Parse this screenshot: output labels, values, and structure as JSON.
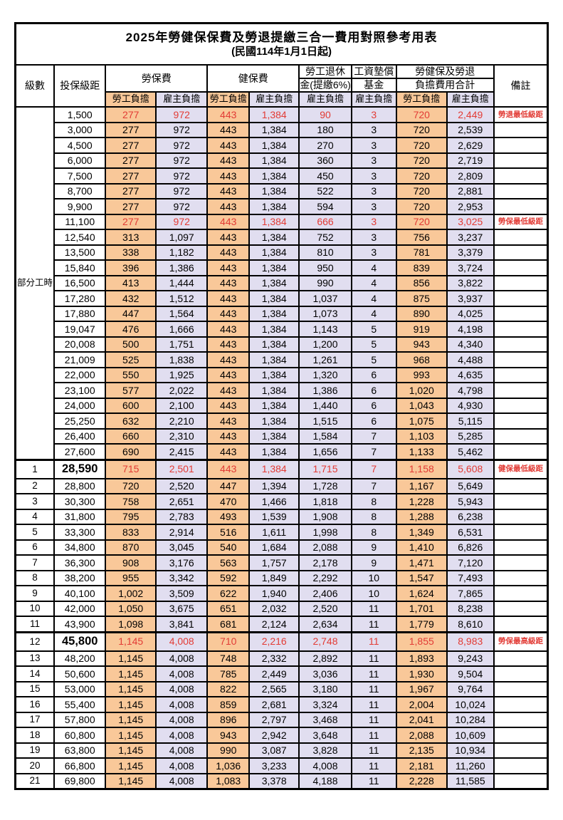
{
  "colors": {
    "employee_fill": "#F9C899",
    "employer_fill": "#E1DEF0",
    "highlight_red": "#E23B35",
    "border": "#000000"
  },
  "table": {
    "title": "2025年勞健保保費及勞退提繳三合一費用對照參考用表",
    "subtitle": "(民國114年1月1日起)",
    "headers": {
      "level": "級數",
      "bracket": "投保級距",
      "labor_insurance": "勞保費",
      "health_insurance": "健保費",
      "pension_line1": "勞工退休",
      "pension_line2": "金(提繳6%)",
      "wage_fund_line1": "工資墊償",
      "wage_fund_line2": "基金",
      "total_line1": "勞健保及勞退",
      "total_line2": "負擔費用合計",
      "note": "備註",
      "employee": "勞工負擔",
      "employer": "雇主負擔"
    },
    "part_time_label": "部分工時",
    "part_time_rowspan": 23,
    "rows": [
      {
        "level": null,
        "bracket": "1,500",
        "values": [
          "277",
          "972",
          "443",
          "1,384",
          "90",
          "3",
          "720",
          "2,449"
        ],
        "note": "勞退最低級距",
        "red": true,
        "big": false
      },
      {
        "level": null,
        "bracket": "3,000",
        "values": [
          "277",
          "972",
          "443",
          "1,384",
          "180",
          "3",
          "720",
          "2,539"
        ],
        "note": "",
        "red": false,
        "big": false
      },
      {
        "level": null,
        "bracket": "4,500",
        "values": [
          "277",
          "972",
          "443",
          "1,384",
          "270",
          "3",
          "720",
          "2,629"
        ],
        "note": "",
        "red": false,
        "big": false
      },
      {
        "level": null,
        "bracket": "6,000",
        "values": [
          "277",
          "972",
          "443",
          "1,384",
          "360",
          "3",
          "720",
          "2,719"
        ],
        "note": "",
        "red": false,
        "big": false
      },
      {
        "level": null,
        "bracket": "7,500",
        "values": [
          "277",
          "972",
          "443",
          "1,384",
          "450",
          "3",
          "720",
          "2,809"
        ],
        "note": "",
        "red": false,
        "big": false
      },
      {
        "level": null,
        "bracket": "8,700",
        "values": [
          "277",
          "972",
          "443",
          "1,384",
          "522",
          "3",
          "720",
          "2,881"
        ],
        "note": "",
        "red": false,
        "big": false
      },
      {
        "level": null,
        "bracket": "9,900",
        "values": [
          "277",
          "972",
          "443",
          "1,384",
          "594",
          "3",
          "720",
          "2,953"
        ],
        "note": "",
        "red": false,
        "big": false
      },
      {
        "level": null,
        "bracket": "11,100",
        "values": [
          "277",
          "972",
          "443",
          "1,384",
          "666",
          "3",
          "720",
          "3,025"
        ],
        "note": "勞保最低級距",
        "red": true,
        "big": false
      },
      {
        "level": null,
        "bracket": "12,540",
        "values": [
          "313",
          "1,097",
          "443",
          "1,384",
          "752",
          "3",
          "756",
          "3,237"
        ],
        "note": "",
        "red": false,
        "big": false
      },
      {
        "level": null,
        "bracket": "13,500",
        "values": [
          "338",
          "1,182",
          "443",
          "1,384",
          "810",
          "3",
          "781",
          "3,379"
        ],
        "note": "",
        "red": false,
        "big": false
      },
      {
        "level": null,
        "bracket": "15,840",
        "values": [
          "396",
          "1,386",
          "443",
          "1,384",
          "950",
          "4",
          "839",
          "3,724"
        ],
        "note": "",
        "red": false,
        "big": false
      },
      {
        "level": null,
        "bracket": "16,500",
        "values": [
          "413",
          "1,444",
          "443",
          "1,384",
          "990",
          "4",
          "856",
          "3,822"
        ],
        "note": "",
        "red": false,
        "big": false
      },
      {
        "level": null,
        "bracket": "17,280",
        "values": [
          "432",
          "1,512",
          "443",
          "1,384",
          "1,037",
          "4",
          "875",
          "3,937"
        ],
        "note": "",
        "red": false,
        "big": false
      },
      {
        "level": null,
        "bracket": "17,880",
        "values": [
          "447",
          "1,564",
          "443",
          "1,384",
          "1,073",
          "4",
          "890",
          "4,025"
        ],
        "note": "",
        "red": false,
        "big": false
      },
      {
        "level": null,
        "bracket": "19,047",
        "values": [
          "476",
          "1,666",
          "443",
          "1,384",
          "1,143",
          "5",
          "919",
          "4,198"
        ],
        "note": "",
        "red": false,
        "big": false
      },
      {
        "level": null,
        "bracket": "20,008",
        "values": [
          "500",
          "1,751",
          "443",
          "1,384",
          "1,200",
          "5",
          "943",
          "4,340"
        ],
        "note": "",
        "red": false,
        "big": false
      },
      {
        "level": null,
        "bracket": "21,009",
        "values": [
          "525",
          "1,838",
          "443",
          "1,384",
          "1,261",
          "5",
          "968",
          "4,488"
        ],
        "note": "",
        "red": false,
        "big": false
      },
      {
        "level": null,
        "bracket": "22,000",
        "values": [
          "550",
          "1,925",
          "443",
          "1,384",
          "1,320",
          "6",
          "993",
          "4,635"
        ],
        "note": "",
        "red": false,
        "big": false
      },
      {
        "level": null,
        "bracket": "23,100",
        "values": [
          "577",
          "2,022",
          "443",
          "1,384",
          "1,386",
          "6",
          "1,020",
          "4,798"
        ],
        "note": "",
        "red": false,
        "big": false
      },
      {
        "level": null,
        "bracket": "24,000",
        "values": [
          "600",
          "2,100",
          "443",
          "1,384",
          "1,440",
          "6",
          "1,043",
          "4,930"
        ],
        "note": "",
        "red": false,
        "big": false
      },
      {
        "level": null,
        "bracket": "25,250",
        "values": [
          "632",
          "2,210",
          "443",
          "1,384",
          "1,515",
          "6",
          "1,075",
          "5,115"
        ],
        "note": "",
        "red": false,
        "big": false
      },
      {
        "level": null,
        "bracket": "26,400",
        "values": [
          "660",
          "2,310",
          "443",
          "1,384",
          "1,584",
          "7",
          "1,103",
          "5,285"
        ],
        "note": "",
        "red": false,
        "big": false
      },
      {
        "level": null,
        "bracket": "27,600",
        "values": [
          "690",
          "2,415",
          "443",
          "1,384",
          "1,656",
          "7",
          "1,133",
          "5,462"
        ],
        "note": "",
        "red": false,
        "big": false
      },
      {
        "level": "1",
        "bracket": "28,590",
        "values": [
          "715",
          "2,501",
          "443",
          "1,384",
          "1,715",
          "7",
          "1,158",
          "5,608"
        ],
        "note": "健保最低級距",
        "red": true,
        "big": true
      },
      {
        "level": "2",
        "bracket": "28,800",
        "values": [
          "720",
          "2,520",
          "447",
          "1,394",
          "1,728",
          "7",
          "1,167",
          "5,649"
        ],
        "note": "",
        "red": false,
        "big": false
      },
      {
        "level": "3",
        "bracket": "30,300",
        "values": [
          "758",
          "2,651",
          "470",
          "1,466",
          "1,818",
          "8",
          "1,228",
          "5,943"
        ],
        "note": "",
        "red": false,
        "big": false
      },
      {
        "level": "4",
        "bracket": "31,800",
        "values": [
          "795",
          "2,783",
          "493",
          "1,539",
          "1,908",
          "8",
          "1,288",
          "6,238"
        ],
        "note": "",
        "red": false,
        "big": false
      },
      {
        "level": "5",
        "bracket": "33,300",
        "values": [
          "833",
          "2,914",
          "516",
          "1,611",
          "1,998",
          "8",
          "1,349",
          "6,531"
        ],
        "note": "",
        "red": false,
        "big": false
      },
      {
        "level": "6",
        "bracket": "34,800",
        "values": [
          "870",
          "3,045",
          "540",
          "1,684",
          "2,088",
          "9",
          "1,410",
          "6,826"
        ],
        "note": "",
        "red": false,
        "big": false
      },
      {
        "level": "7",
        "bracket": "36,300",
        "values": [
          "908",
          "3,176",
          "563",
          "1,757",
          "2,178",
          "9",
          "1,471",
          "7,120"
        ],
        "note": "",
        "red": false,
        "big": false
      },
      {
        "level": "8",
        "bracket": "38,200",
        "values": [
          "955",
          "3,342",
          "592",
          "1,849",
          "2,292",
          "10",
          "1,547",
          "7,493"
        ],
        "note": "",
        "red": false,
        "big": false
      },
      {
        "level": "9",
        "bracket": "40,100",
        "values": [
          "1,002",
          "3,509",
          "622",
          "1,940",
          "2,406",
          "10",
          "1,624",
          "7,865"
        ],
        "note": "",
        "red": false,
        "big": false
      },
      {
        "level": "10",
        "bracket": "42,000",
        "values": [
          "1,050",
          "3,675",
          "651",
          "2,032",
          "2,520",
          "11",
          "1,701",
          "8,238"
        ],
        "note": "",
        "red": false,
        "big": false
      },
      {
        "level": "11",
        "bracket": "43,900",
        "values": [
          "1,098",
          "3,841",
          "681",
          "2,124",
          "2,634",
          "11",
          "1,779",
          "8,610"
        ],
        "note": "",
        "red": false,
        "big": false
      },
      {
        "level": "12",
        "bracket": "45,800",
        "values": [
          "1,145",
          "4,008",
          "710",
          "2,216",
          "2,748",
          "11",
          "1,855",
          "8,983"
        ],
        "note": "勞保最高級距",
        "red": true,
        "big": true
      },
      {
        "level": "13",
        "bracket": "48,200",
        "values": [
          "1,145",
          "4,008",
          "748",
          "2,332",
          "2,892",
          "11",
          "1,893",
          "9,243"
        ],
        "note": "",
        "red": false,
        "big": false
      },
      {
        "level": "14",
        "bracket": "50,600",
        "values": [
          "1,145",
          "4,008",
          "785",
          "2,449",
          "3,036",
          "11",
          "1,930",
          "9,504"
        ],
        "note": "",
        "red": false,
        "big": false
      },
      {
        "level": "15",
        "bracket": "53,000",
        "values": [
          "1,145",
          "4,008",
          "822",
          "2,565",
          "3,180",
          "11",
          "1,967",
          "9,764"
        ],
        "note": "",
        "red": false,
        "big": false
      },
      {
        "level": "16",
        "bracket": "55,400",
        "values": [
          "1,145",
          "4,008",
          "859",
          "2,681",
          "3,324",
          "11",
          "2,004",
          "10,024"
        ],
        "note": "",
        "red": false,
        "big": false
      },
      {
        "level": "17",
        "bracket": "57,800",
        "values": [
          "1,145",
          "4,008",
          "896",
          "2,797",
          "3,468",
          "11",
          "2,041",
          "10,284"
        ],
        "note": "",
        "red": false,
        "big": false
      },
      {
        "level": "18",
        "bracket": "60,800",
        "values": [
          "1,145",
          "4,008",
          "943",
          "2,942",
          "3,648",
          "11",
          "2,088",
          "10,609"
        ],
        "note": "",
        "red": false,
        "big": false
      },
      {
        "level": "19",
        "bracket": "63,800",
        "values": [
          "1,145",
          "4,008",
          "990",
          "3,087",
          "3,828",
          "11",
          "2,135",
          "10,934"
        ],
        "note": "",
        "red": false,
        "big": false
      },
      {
        "level": "20",
        "bracket": "66,800",
        "values": [
          "1,145",
          "4,008",
          "1,036",
          "3,233",
          "4,008",
          "11",
          "2,181",
          "11,260"
        ],
        "note": "",
        "red": false,
        "big": false
      },
      {
        "level": "21",
        "bracket": "69,800",
        "values": [
          "1,145",
          "4,008",
          "1,083",
          "3,378",
          "4,188",
          "11",
          "2,228",
          "11,585"
        ],
        "note": "",
        "red": false,
        "big": false
      }
    ]
  }
}
